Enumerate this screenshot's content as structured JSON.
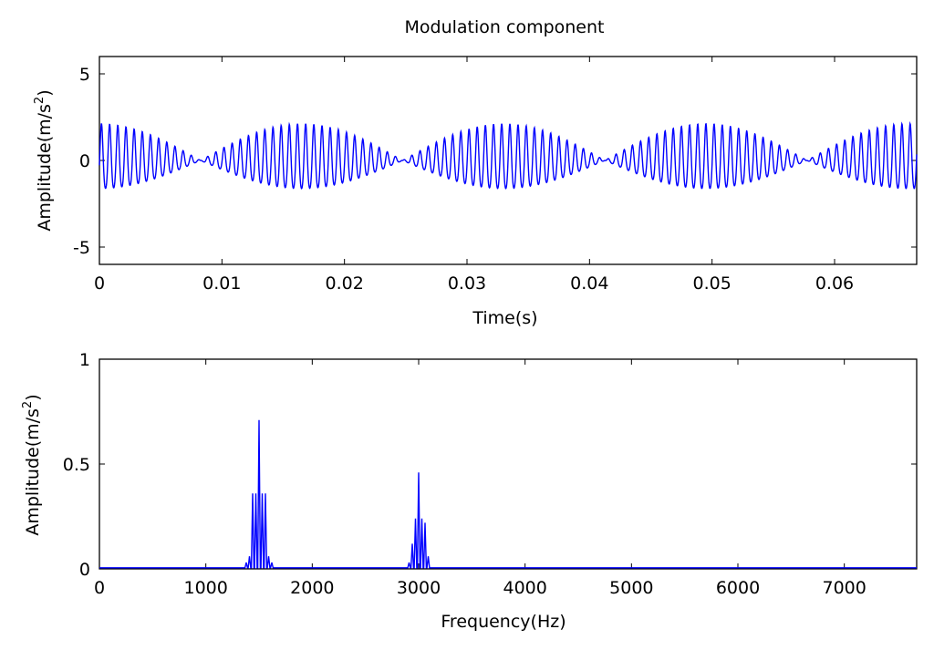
{
  "title": "Modulation component",
  "chart_data": [
    {
      "type": "line",
      "title": "Modulation component",
      "xlabel": "Time(s)",
      "ylabel": "Amplitude(m/s2)",
      "ylabel_base": "Amplitude(m/s",
      "ylabel_sup": "2",
      "ylabel_tail": ")",
      "xlim": [
        0,
        0.0667
      ],
      "ylim": [
        -6,
        6
      ],
      "xticks": [
        0,
        0.01,
        0.02,
        0.03,
        0.04,
        0.05,
        0.06
      ],
      "xtick_labels": [
        "0",
        "0.01",
        "0.02",
        "0.03",
        "0.04",
        "0.05",
        "0.06"
      ],
      "yticks": [
        -5,
        0,
        5
      ],
      "ytick_labels": [
        "-5",
        "0",
        "5"
      ],
      "grid": false,
      "color": "#0000ff",
      "carrier_hz": 1500,
      "envelope_period_s": 0.0165,
      "peak_amplitude": 2.4,
      "dc_offset": 0.55
    },
    {
      "type": "line",
      "title": "",
      "xlabel": "Frequency(Hz)",
      "ylabel": "Amplitude(m/s2)",
      "ylabel_base": "Amplitude(m/s",
      "ylabel_sup": "2",
      "ylabel_tail": ")",
      "xlim": [
        0,
        7680
      ],
      "ylim": [
        0,
        1
      ],
      "xticks": [
        0,
        1000,
        2000,
        3000,
        4000,
        5000,
        6000,
        7000
      ],
      "xtick_labels": [
        "0",
        "1000",
        "2000",
        "3000",
        "4000",
        "5000",
        "6000",
        "7000"
      ],
      "yticks": [
        0,
        0.5,
        1
      ],
      "ytick_labels": [
        "0",
        "0.5",
        "1"
      ],
      "grid": false,
      "color": "#0000ff",
      "peaks": [
        {
          "x": 1380,
          "y": 0.03
        },
        {
          "x": 1410,
          "y": 0.06
        },
        {
          "x": 1440,
          "y": 0.36
        },
        {
          "x": 1470,
          "y": 0.36
        },
        {
          "x": 1500,
          "y": 0.71
        },
        {
          "x": 1530,
          "y": 0.36
        },
        {
          "x": 1560,
          "y": 0.36
        },
        {
          "x": 1590,
          "y": 0.06
        },
        {
          "x": 1620,
          "y": 0.03
        },
        {
          "x": 2910,
          "y": 0.03
        },
        {
          "x": 2940,
          "y": 0.12
        },
        {
          "x": 2970,
          "y": 0.24
        },
        {
          "x": 3000,
          "y": 0.46
        },
        {
          "x": 3030,
          "y": 0.24
        },
        {
          "x": 3060,
          "y": 0.22
        },
        {
          "x": 3090,
          "y": 0.06
        }
      ]
    }
  ]
}
